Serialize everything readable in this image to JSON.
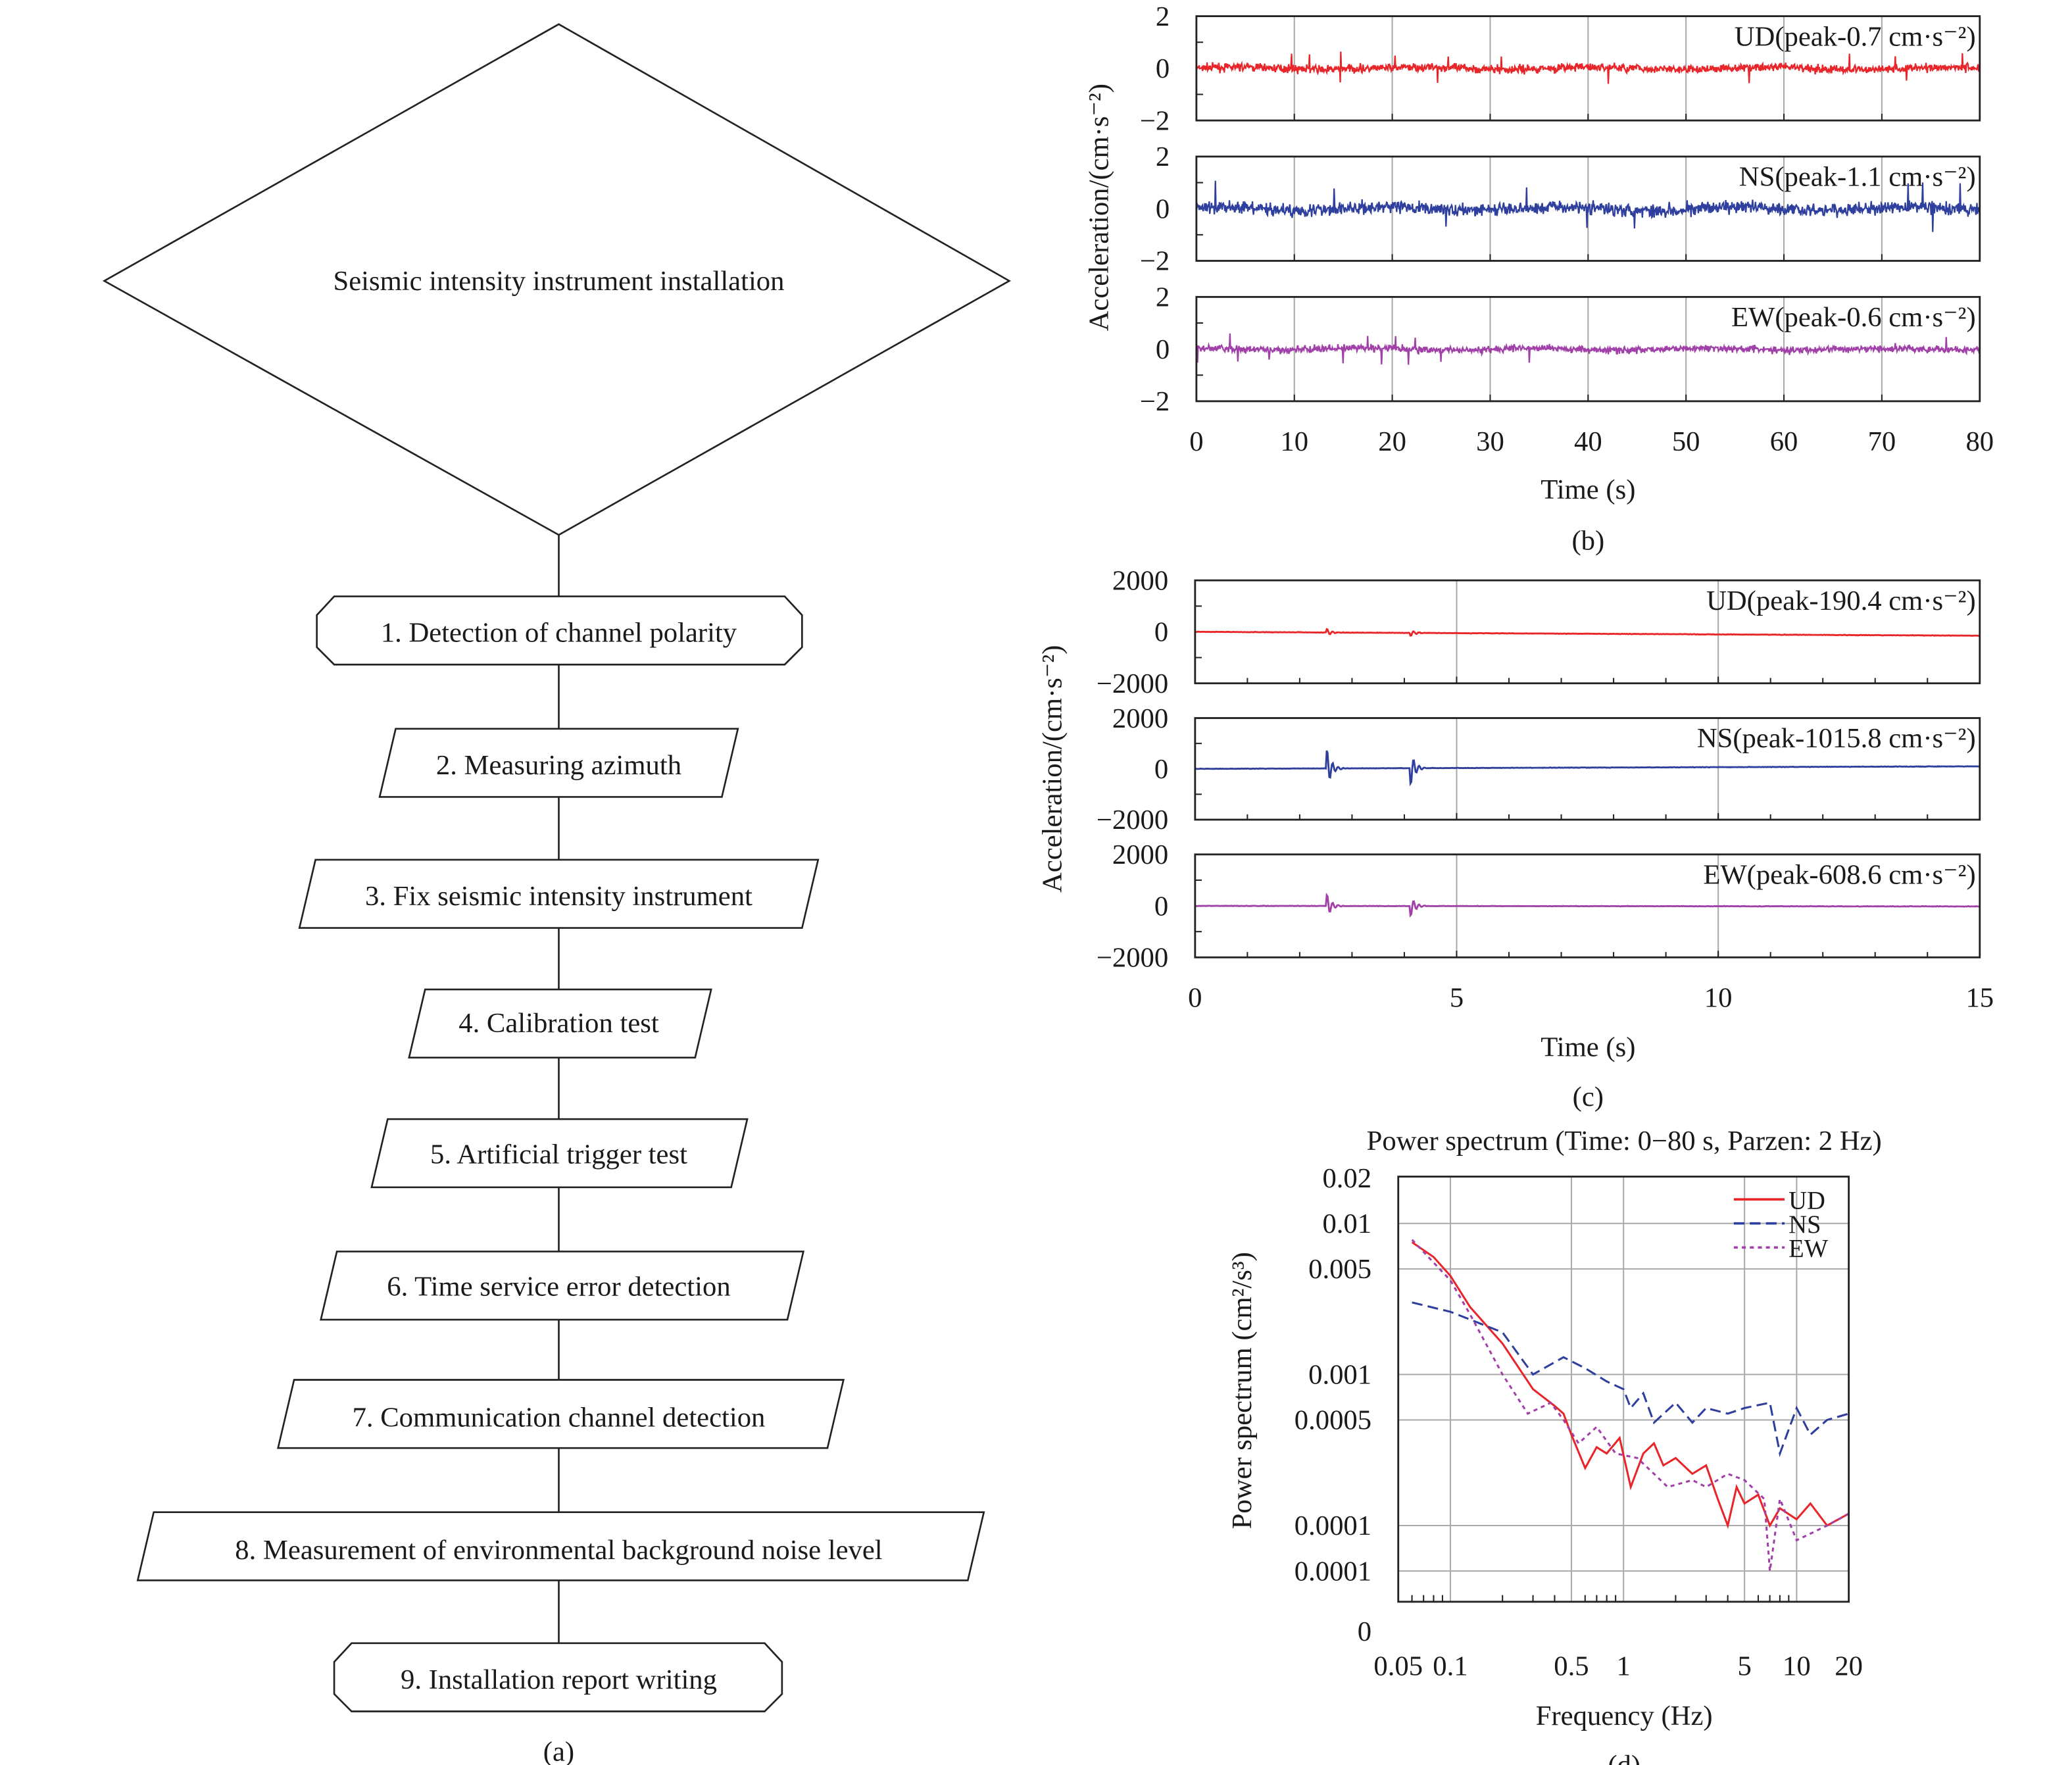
{
  "flowchart": {
    "title": "Seismic intensity instrument installation",
    "steps": [
      "1. Detection of channel polarity",
      "2. Measuring azimuth",
      "3. Fix seismic intensity instrument",
      "4. Calibration test",
      "5. Artificial trigger test",
      "6. Time service error detection",
      "7. Communication channel detection",
      "8. Measurement of environmental background noise level",
      "9. Installation report writing"
    ],
    "caption": "(a)"
  },
  "colors": {
    "UD": "#e8262a",
    "NS": "#2e3f9e",
    "EW": "#a040a8"
  },
  "chart_data": [
    {
      "type": "line",
      "caption": "(b)",
      "xlabel": "Time (s)",
      "ylabel": "Acceleration/(cm·s⁻²)",
      "xlim": [
        0,
        80
      ],
      "xticks": [
        "0",
        "10",
        "20",
        "30",
        "40",
        "50",
        "60",
        "70",
        "80"
      ],
      "ylim": [
        -2,
        2
      ],
      "yticks": [
        "2",
        "0",
        "−2"
      ],
      "grid": "vertical",
      "series": [
        {
          "name": "UD(peak-0.7 cm·s⁻²)",
          "key": "UD",
          "peak": 0.7
        },
        {
          "name": "NS(peak-1.1 cm·s⁻²)",
          "key": "NS",
          "peak": 1.1
        },
        {
          "name": "EW(peak-0.6 cm·s⁻²)",
          "key": "EW",
          "peak": 0.6
        }
      ]
    },
    {
      "type": "line",
      "caption": "(c)",
      "xlabel": "Time (s)",
      "ylabel": "Acceleration/(cm·s⁻²)",
      "xlim": [
        0,
        15
      ],
      "xticks": [
        "0",
        "5",
        "10",
        "15"
      ],
      "ylim": [
        -2000,
        2000
      ],
      "yticks": [
        "2000",
        "0",
        "−2000"
      ],
      "grid": "vertical",
      "event_times_s": [
        2.5,
        4.1
      ],
      "series": [
        {
          "name": "UD(peak-190.4 cm·s⁻²)",
          "key": "UD",
          "peak": 190.4
        },
        {
          "name": "NS(peak-1015.8 cm·s⁻²)",
          "key": "NS",
          "peak": 1015.8
        },
        {
          "name": "EW(peak-608.6 cm·s⁻²)",
          "key": "EW",
          "peak": 608.6
        }
      ]
    },
    {
      "type": "line",
      "caption": "(d)",
      "title": "Power spectrum (Time: 0−80 s, Parzen: 2 Hz)",
      "xlabel": "Frequency (Hz)",
      "ylabel": "Power spectrum (cm²/s³)",
      "xscale": "log",
      "yscale": "log",
      "xlim": [
        0.05,
        20
      ],
      "xticks": [
        {
          "value": 0.05,
          "label": "0.05"
        },
        {
          "value": 0.1,
          "label": "0.1"
        },
        {
          "value": 0.5,
          "label": "0.5"
        },
        {
          "value": 1,
          "label": "1"
        },
        {
          "value": 5,
          "label": "5"
        },
        {
          "value": 10,
          "label": "10"
        },
        {
          "value": 20,
          "label": "20"
        }
      ],
      "yticks": [
        {
          "value": 0.02,
          "label": "0.02"
        },
        {
          "value": 0.01,
          "label": "0.01"
        },
        {
          "value": 0.005,
          "label": "0.005"
        },
        {
          "value": 0.001,
          "label": "0.001"
        },
        {
          "value": 0.0005,
          "label": "0.0005"
        },
        {
          "value": 0.0001,
          "label": "0.0001"
        },
        {
          "value": 5e-05,
          "label": "0.0001"
        },
        {
          "value": 2e-05,
          "label": "0"
        }
      ],
      "grid": true,
      "legend": "top-right",
      "series": [
        {
          "name": "UD",
          "key": "UD",
          "dash": "solid",
          "x": [
            0.06,
            0.08,
            0.1,
            0.13,
            0.2,
            0.3,
            0.4,
            0.45,
            0.5,
            0.6,
            0.7,
            0.8,
            0.95,
            1.1,
            1.3,
            1.5,
            1.7,
            2,
            2.5,
            3,
            3.5,
            4,
            4.5,
            5,
            6,
            7,
            8,
            10,
            12,
            15,
            20
          ],
          "y": [
            0.0075,
            0.006,
            0.0045,
            0.0028,
            0.0016,
            0.0008,
            0.00062,
            0.00055,
            0.0004,
            0.00024,
            0.00033,
            0.0003,
            0.00038,
            0.00018,
            0.0003,
            0.00035,
            0.00025,
            0.00028,
            0.00022,
            0.00025,
            0.00015,
            0.0001,
            0.00018,
            0.00014,
            0.00016,
            0.0001,
            0.00013,
            0.00011,
            0.00014,
            0.0001,
            0.00012
          ]
        },
        {
          "name": "NS",
          "key": "NS",
          "dash": "dashed",
          "x": [
            0.06,
            0.1,
            0.2,
            0.3,
            0.45,
            0.6,
            0.8,
            1,
            1.1,
            1.3,
            1.5,
            2,
            2.5,
            3,
            4,
            5,
            7,
            8,
            10,
            12,
            15,
            20
          ],
          "y": [
            0.003,
            0.0026,
            0.0019,
            0.001,
            0.0013,
            0.0011,
            0.0009,
            0.0008,
            0.0006,
            0.00075,
            0.00048,
            0.00065,
            0.00048,
            0.0006,
            0.00055,
            0.0006,
            0.00065,
            0.0003,
            0.0006,
            0.0004,
            0.0005,
            0.00055
          ]
        },
        {
          "name": "EW",
          "key": "EW",
          "dash": "dotted",
          "x": [
            0.06,
            0.1,
            0.13,
            0.2,
            0.28,
            0.38,
            0.45,
            0.55,
            0.7,
            0.9,
            1.2,
            1.5,
            1.8,
            2.5,
            3,
            4,
            5,
            6.5,
            7,
            8,
            10,
            15,
            20
          ],
          "y": [
            0.0078,
            0.0042,
            0.0025,
            0.001,
            0.00055,
            0.00065,
            0.0005,
            0.00035,
            0.00045,
            0.0003,
            0.00028,
            0.00022,
            0.00018,
            0.0002,
            0.00018,
            0.00022,
            0.0002,
            0.00015,
            5e-05,
            0.00015,
            8e-05,
            0.0001,
            0.00012
          ]
        }
      ]
    }
  ]
}
